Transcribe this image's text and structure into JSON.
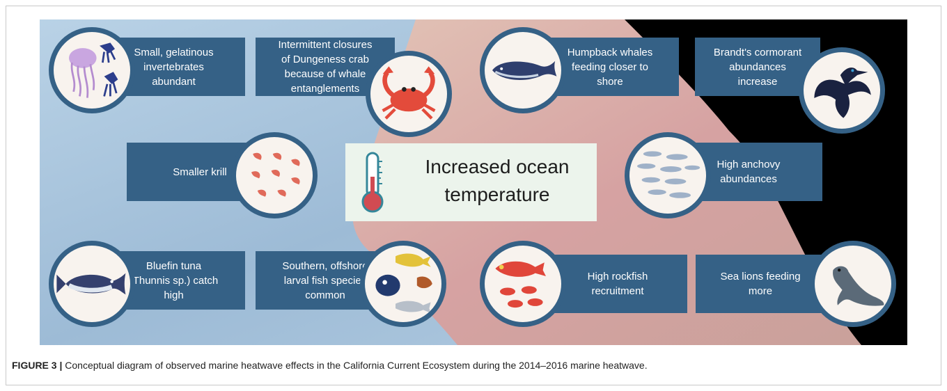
{
  "center": {
    "title": "Increased ocean\ntemperature"
  },
  "cards": {
    "jellyfish": "Small, gelatinous\ninvertebrates\nabundant",
    "crab": "Intermittent closures\nof Dungeness crab\nbecause of whale\nentanglements",
    "whale": "Humpback whales\nfeeding closer to\nshore",
    "cormorant": "Brandt's cormorant\nabundances\nincrease",
    "krill": "Smaller krill",
    "anchovy": "High anchovy\nabundances",
    "tuna": "Bluefin tuna\n(Thunnis sp.) catch\nhigh",
    "larval": "Southern, offshore\nlarval fish species\ncommon",
    "rockfish": "High rockfish\nrecruitment",
    "sealion": "Sea lions feeding\nmore"
  },
  "icons": [
    "jellyfish-icon",
    "crab-icon",
    "whale-icon",
    "cormorant-icon",
    "krill-icon",
    "anchovy-icon",
    "tuna-icon",
    "larval-fish-icon",
    "rockfish-icon",
    "sea-lion-icon",
    "thermometer-icon"
  ],
  "colors": {
    "card": "#356186",
    "circle_fill": "#f8f3ee",
    "center_box": "#ecf4ec",
    "ocean": "#a8c4dc",
    "land": "#d9a8a0",
    "coast_black": "#000000"
  },
  "caption": {
    "label": "FIGURE 3 |",
    "text": " Conceptual diagram of observed marine heatwave effects in the California Current Ecosystem during the 2014–2016 marine heatwave."
  }
}
